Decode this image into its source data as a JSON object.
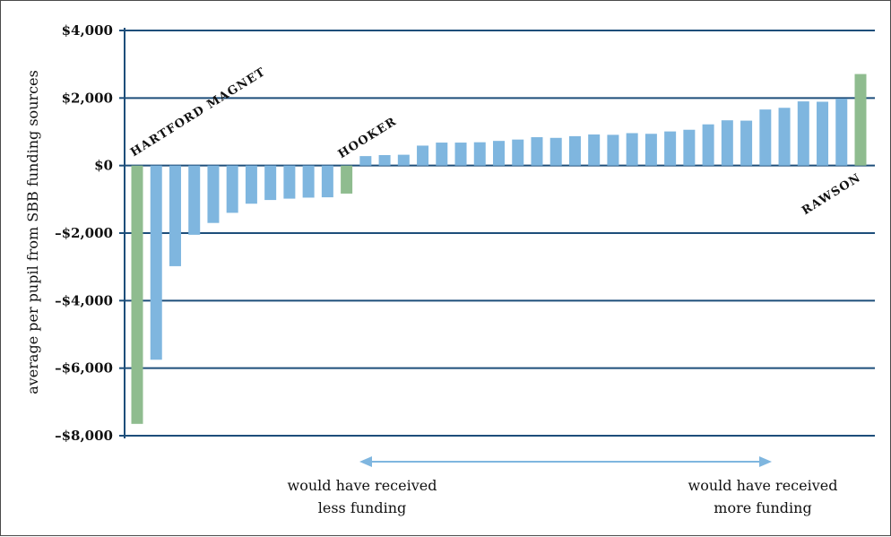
{
  "chart_data": {
    "type": "bar",
    "ylabel": "average per pupil from SBB funding sources",
    "ylim": [
      -8000,
      4000
    ],
    "yticks": [
      4000,
      2000,
      0,
      -2000,
      -4000,
      -6000,
      -8000
    ],
    "ytick_labels": [
      "$4,000",
      "$2,000",
      "$0",
      "–$2,000",
      "–$4,000",
      "–$6,000",
      "–$8,000"
    ],
    "grid": true,
    "values": [
      -7650,
      -5750,
      -2980,
      -2050,
      -1700,
      -1400,
      -1130,
      -1020,
      -980,
      -950,
      -940,
      -830,
      280,
      310,
      320,
      590,
      680,
      680,
      690,
      730,
      770,
      840,
      820,
      870,
      920,
      910,
      960,
      940,
      1010,
      1060,
      1220,
      1340,
      1330,
      1660,
      1710,
      1900,
      1890,
      1980,
      2710
    ],
    "highlight_color": "#8fbc8f",
    "bar_color": "#7fb6df",
    "highlighted_indices": [
      0,
      11,
      38
    ],
    "annotations": [
      {
        "text": "HARTFORD MAGNET",
        "bar_index": 0
      },
      {
        "text": "HOOKER",
        "bar_index": 11
      },
      {
        "text": "RAWSON",
        "bar_index": 38
      }
    ],
    "arrow_labels": {
      "left": [
        "would have received",
        "less funding"
      ],
      "right": [
        "would have received",
        "more funding"
      ]
    },
    "arrow_color": "#7fb6df",
    "grid_color": "#1d4e7a"
  }
}
